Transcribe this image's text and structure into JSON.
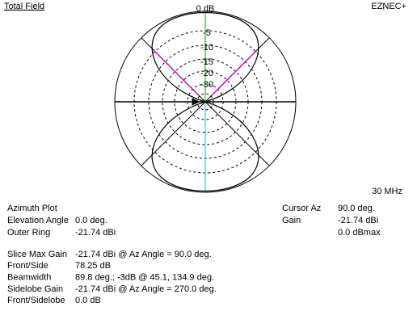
{
  "header": {
    "title": "Total Field",
    "app": "EZNEC+"
  },
  "plot": {
    "ring_labels": [
      "0 dB",
      "-5",
      "-10",
      "-15",
      "-20",
      "-30"
    ],
    "frequency": "30 MHz"
  },
  "summary": {
    "plot_type": "Azimuth Plot",
    "rows": [
      [
        "Elevation Angle",
        "0.0 deg."
      ],
      [
        "Outer Ring",
        "-21.74 dBi"
      ]
    ]
  },
  "cursor": {
    "rows": [
      [
        "Cursor Az",
        "90.0 deg."
      ],
      [
        "Gain",
        "-21.74 dBi"
      ]
    ],
    "reference": "0.0 dBmax"
  },
  "details": {
    "rows": [
      [
        "Slice Max Gain",
        "-21.74 dBi @ Az Angle = 90.0 deg."
      ],
      [
        "Front/Side",
        "78.25 dB"
      ],
      [
        "Beamwidth",
        "89.8 deg.; -3dB @ 45.1, 134.9 deg."
      ],
      [
        "Sidelobe Gain",
        "-21.74 dBi @ Az Angle = 270.0 deg."
      ],
      [
        "Front/Sidelobe",
        "0.0 dB"
      ]
    ]
  }
}
